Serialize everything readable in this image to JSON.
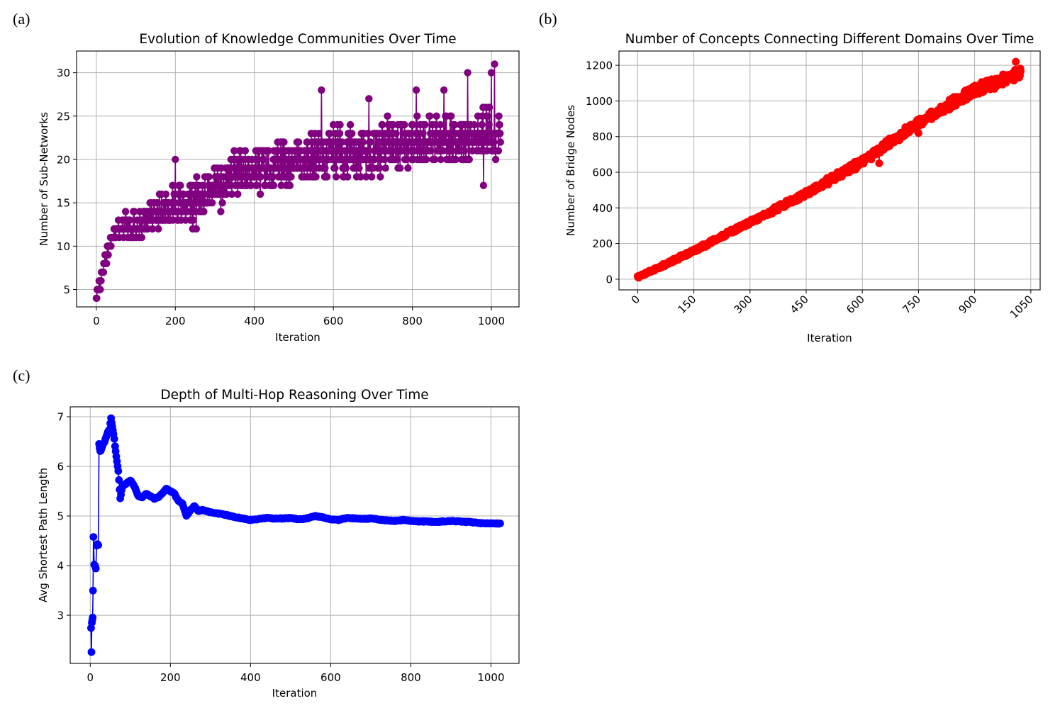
{
  "chart_data": [
    {
      "id": "a",
      "panel_label": "(a)",
      "type": "line",
      "title": "Evolution of Knowledge Communities Over Time",
      "xlabel": "Iteration",
      "ylabel": "Number of Sub-Networks",
      "xlim": [
        -50,
        1070
      ],
      "ylim": [
        3,
        32.5
      ],
      "xticks": [
        0,
        200,
        400,
        600,
        800,
        1000
      ],
      "yticks": [
        5,
        10,
        15,
        20,
        25,
        30
      ],
      "grid": true,
      "marker": "o",
      "color": "#800080",
      "n_points": 1024,
      "series": [
        {
          "x": [
            0,
            25,
            50,
            100,
            150,
            200,
            250,
            300,
            350,
            400,
            450,
            500,
            550,
            600,
            650,
            700,
            750,
            800,
            850,
            900,
            950,
            1000,
            1023
          ],
          "y": [
            4,
            9,
            12,
            12,
            14,
            15,
            15,
            17,
            18,
            19,
            19,
            20,
            20,
            21,
            21,
            21,
            22,
            22,
            22,
            22.5,
            22.5,
            23,
            23
          ],
          "spread": [
            0.5,
            1.5,
            1.5,
            2,
            2,
            3,
            3,
            3,
            3,
            3,
            3,
            3,
            3.5,
            3.5,
            3.5,
            3.5,
            3.5,
            3.5,
            3.5,
            3.5,
            3.5,
            3.5,
            3.5
          ]
        }
      ],
      "extremes": [
        {
          "x": 570,
          "y": 28
        },
        {
          "x": 690,
          "y": 27
        },
        {
          "x": 810,
          "y": 28
        },
        {
          "x": 880,
          "y": 28
        },
        {
          "x": 940,
          "y": 30
        },
        {
          "x": 1000,
          "y": 30
        },
        {
          "x": 1008,
          "y": 31
        },
        {
          "x": 980,
          "y": 17
        },
        {
          "x": 200,
          "y": 20
        },
        {
          "x": 315,
          "y": 14
        }
      ]
    },
    {
      "id": "b",
      "panel_label": "(b)",
      "type": "line",
      "title": "Number of Concepts Connecting Different Domains Over Time",
      "xlabel": "Iteration",
      "ylabel": "Number of Bridge Nodes",
      "xlim": [
        -50,
        1075
      ],
      "ylim": [
        -60,
        1280
      ],
      "xticks": [
        0,
        150,
        300,
        450,
        600,
        750,
        900,
        1050
      ],
      "yticks": [
        0,
        200,
        400,
        600,
        800,
        1000,
        1200
      ],
      "xtick_rotation": 45,
      "grid": true,
      "marker": "o",
      "color": "#ff0000",
      "n_points": 1024,
      "series": [
        {
          "x": [
            0,
            150,
            300,
            450,
            600,
            750,
            900,
            1023
          ],
          "y": [
            10,
            160,
            320,
            480,
            660,
            880,
            1060,
            1160
          ],
          "spread": [
            8,
            12,
            15,
            20,
            25,
            30,
            35,
            40
          ]
        }
      ],
      "extremes": [
        {
          "x": 645,
          "y": 650
        },
        {
          "x": 750,
          "y": 820
        },
        {
          "x": 1010,
          "y": 1220
        }
      ]
    },
    {
      "id": "c",
      "panel_label": "(c)",
      "type": "line",
      "title": "Depth of Multi-Hop Reasoning Over Time",
      "xlabel": "Iteration",
      "ylabel": "Avg Shortest Path Length",
      "xlim": [
        -50,
        1070
      ],
      "ylim": [
        2.03,
        7.2
      ],
      "xticks": [
        0,
        200,
        400,
        600,
        800,
        1000
      ],
      "yticks": [
        3,
        4,
        5,
        6,
        7
      ],
      "grid": true,
      "marker": "o",
      "color": "#0000ff",
      "n_points": 1024,
      "series": [
        {
          "x": [
            2,
            3,
            4,
            5,
            6,
            7,
            8,
            10,
            12,
            14,
            16,
            18,
            20,
            22,
            25,
            28,
            32,
            36,
            40,
            44,
            48,
            52,
            55,
            58,
            60,
            62,
            65,
            70,
            75,
            80,
            90,
            100,
            110,
            120,
            130,
            140,
            150,
            160,
            170,
            180,
            190,
            200,
            210,
            220,
            230,
            240,
            250,
            260,
            270,
            280,
            300,
            320,
            340,
            360,
            380,
            400,
            420,
            440,
            460,
            480,
            500,
            520,
            540,
            560,
            580,
            600,
            620,
            640,
            660,
            680,
            700,
            720,
            740,
            760,
            780,
            800,
            820,
            840,
            860,
            880,
            900,
            920,
            940,
            960,
            980,
            1000,
            1023
          ],
          "y": [
            2.75,
            2.25,
            2.85,
            2.9,
            2.95,
            3.5,
            4.58,
            4.02,
            4.0,
            3.95,
            4.4,
            4.43,
            4.42,
            6.45,
            6.3,
            6.35,
            6.45,
            6.5,
            6.6,
            6.7,
            6.75,
            6.97,
            6.8,
            6.65,
            6.55,
            6.4,
            6.2,
            5.9,
            5.35,
            5.6,
            5.65,
            5.72,
            5.6,
            5.4,
            5.38,
            5.45,
            5.4,
            5.35,
            5.38,
            5.45,
            5.55,
            5.5,
            5.45,
            5.3,
            5.25,
            5.0,
            5.12,
            5.2,
            5.1,
            5.12,
            5.08,
            5.05,
            5.02,
            4.98,
            4.95,
            4.92,
            4.94,
            4.96,
            4.95,
            4.95,
            4.96,
            4.93,
            4.95,
            5.0,
            4.98,
            4.93,
            4.92,
            4.96,
            4.95,
            4.94,
            4.95,
            4.93,
            4.91,
            4.9,
            4.92,
            4.9,
            4.89,
            4.89,
            4.88,
            4.89,
            4.9,
            4.89,
            4.88,
            4.87,
            4.85,
            4.85,
            4.85
          ]
        }
      ]
    }
  ]
}
